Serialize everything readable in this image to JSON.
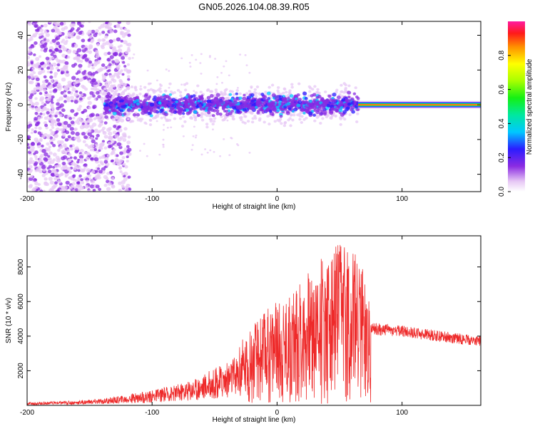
{
  "title": "GN05.2026.104.08.39.R05",
  "chart_data": [
    {
      "type": "heatmap",
      "xlabel": "Height of straight line (km)",
      "ylabel": "Frequency (Hz)",
      "xlim": [
        -200,
        163
      ],
      "ylim": [
        -50,
        48
      ],
      "x_ticks": [
        "-200",
        "-100",
        "0",
        "100"
      ],
      "y_ticks": [
        "-40",
        "-20",
        "0",
        "20",
        "40"
      ],
      "description_bands": [
        {
          "x": [
            -200,
            -120
          ],
          "freq_spread": 48,
          "amplitude": 0.1
        },
        {
          "x": [
            -138,
            65
          ],
          "freq_spread": 10,
          "amplitude": 0.3
        },
        {
          "x": [
            65,
            163
          ],
          "freq_spread": 2,
          "amplitude": 0.9
        }
      ],
      "colorbar": {
        "label": "Normalized spectral amplitude",
        "range": [
          0,
          1
        ],
        "ticks": [
          "0.0",
          "0.2",
          "0.4",
          "0.6",
          "0.8"
        ]
      }
    },
    {
      "type": "line",
      "xlabel": "Height of straight line (km)",
      "ylabel": "SNR (10 * v/v)",
      "xlim": [
        -200,
        163
      ],
      "ylim": [
        0,
        9800
      ],
      "x_ticks": [
        "-200",
        "-100",
        "0",
        "100"
      ],
      "y_ticks": [
        "2000",
        "4000",
        "6000",
        "8000"
      ],
      "series": [
        {
          "color": "#ee2a2a",
          "x": [
            -200,
            -180,
            -160,
            -140,
            -120,
            -100,
            -80,
            -60,
            -40,
            -30,
            -20,
            -10,
            0,
            10,
            20,
            30,
            40,
            50,
            60,
            70,
            75,
            80,
            100,
            120,
            140,
            163
          ],
          "y": [
            150,
            200,
            250,
            350,
            550,
            800,
            1100,
            1600,
            2300,
            2800,
            3500,
            4300,
            4600,
            5000,
            5600,
            6200,
            6800,
            7400,
            7000,
            6200,
            4400,
            4400,
            4300,
            4100,
            3900,
            3700
          ]
        }
      ]
    }
  ]
}
